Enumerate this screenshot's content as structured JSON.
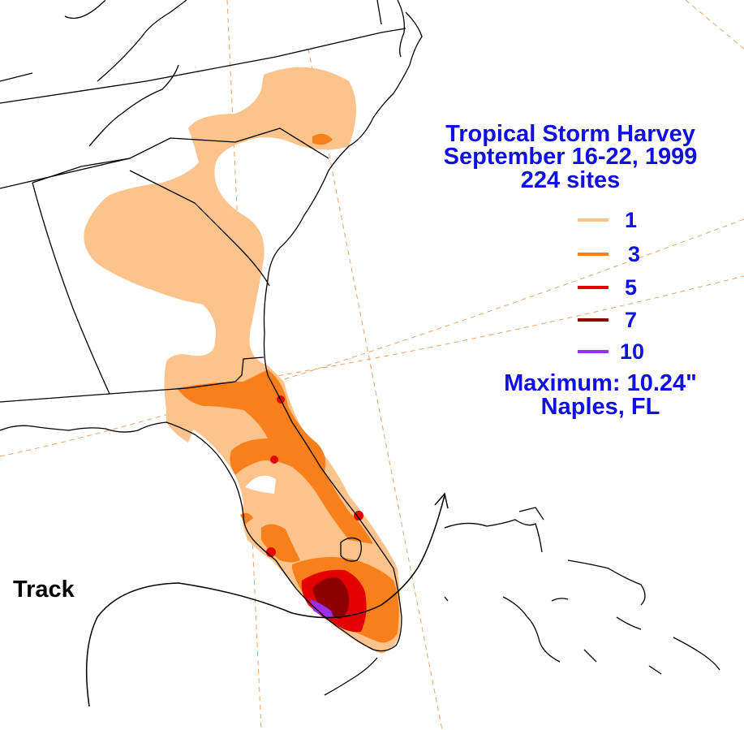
{
  "title": {
    "line1": "Tropical Storm Harvey",
    "line2": "September 16-22, 1999",
    "line3": "224 sites"
  },
  "legend": [
    {
      "label": "1",
      "color": "#fcc48c"
    },
    {
      "label": "3",
      "color": "#f8801c"
    },
    {
      "label": "5",
      "color": "#e40000"
    },
    {
      "label": "7",
      "color": "#8c0000"
    },
    {
      "label": "10",
      "color": "#9c30e4"
    }
  ],
  "maximum": {
    "line1": "Maximum:  10.24\"",
    "line2": "Naples, FL"
  },
  "track_label": "Track",
  "colors": {
    "text": "#1010e0",
    "boundaries": "#000000",
    "graticule": "#f0a060",
    "storm_track": "#000000"
  }
}
